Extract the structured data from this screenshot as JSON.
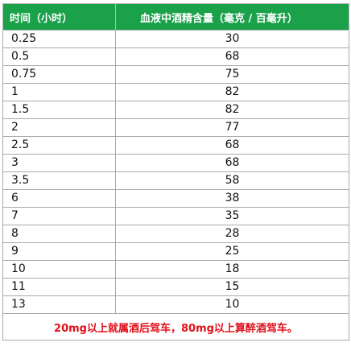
{
  "header": {
    "time_col": "时间（小时）",
    "alcohol_col": "血液中酒精含量（毫克 / 百毫升）"
  },
  "rows": [
    {
      "time": "0.25",
      "value": "30"
    },
    {
      "time": "0.5",
      "value": "68"
    },
    {
      "time": "0.75",
      "value": "75"
    },
    {
      "time": "1",
      "value": "82"
    },
    {
      "time": "1.5",
      "value": "82"
    },
    {
      "time": "2",
      "value": "77"
    },
    {
      "time": "2.5",
      "value": "68"
    },
    {
      "time": "3",
      "value": "68"
    },
    {
      "time": "3.5",
      "value": "58"
    },
    {
      "time": "6",
      "value": "38"
    },
    {
      "time": "7",
      "value": "35"
    },
    {
      "time": "8",
      "value": "28"
    },
    {
      "time": "9",
      "value": "25"
    },
    {
      "time": "10",
      "value": "18"
    },
    {
      "time": "11",
      "value": "15"
    },
    {
      "time": "13",
      "value": "10"
    }
  ],
  "footer": {
    "note": "20mg以上就属酒后驾车，80mg以上算醉酒驾车。"
  },
  "colors": {
    "header_bg": "#1aa14a",
    "note_text": "#e0101a"
  }
}
